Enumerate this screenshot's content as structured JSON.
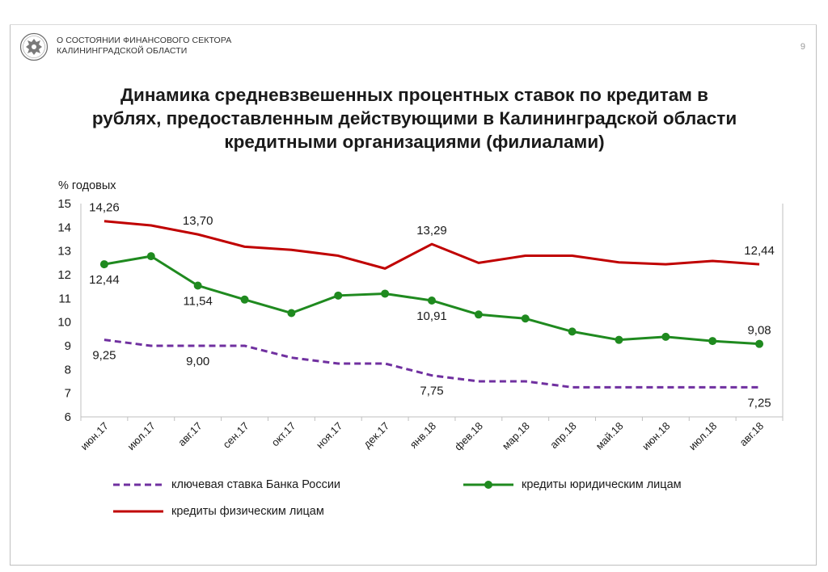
{
  "header": {
    "org_line1": "О СОСТОЯНИИ ФИНАНСОВОГО СЕКТОРА",
    "org_line2": "КАЛИНИНГРАДСКОЙ ОБЛАСТИ",
    "page_number": "9"
  },
  "title_lines": [
    "Динамика средневзвешенных процентных ставок по кредитам в",
    "рублях, предоставленным действующими в Калининградской области",
    "кредитными организациями (филиалами)"
  ],
  "chart_data": {
    "type": "line",
    "ylabel": "% годовых",
    "ylim": [
      6,
      15
    ],
    "yticks": [
      6,
      7,
      8,
      9,
      10,
      11,
      12,
      13,
      14,
      15
    ],
    "grid": false,
    "legend_position": "bottom",
    "categories": [
      "июн.17",
      "июл.17",
      "авг.17",
      "сен.17",
      "окт.17",
      "ноя.17",
      "дек.17",
      "янв.18",
      "фев.18",
      "мар.18",
      "апр.18",
      "май.18",
      "июн.18",
      "июл.18",
      "авг.18"
    ],
    "series": [
      {
        "name": "ключевая ставка Банка России",
        "color": "#7030a0",
        "style": "dashed",
        "values": [
          9.25,
          9.0,
          9.0,
          9.0,
          8.5,
          8.25,
          8.25,
          7.75,
          7.5,
          7.5,
          7.25,
          7.25,
          7.25,
          7.25,
          7.25
        ],
        "labels": [
          {
            "index": 0,
            "text": "9,25",
            "pos": "below"
          },
          {
            "index": 2,
            "text": "9,00",
            "pos": "below"
          },
          {
            "index": 7,
            "text": "7,75",
            "pos": "below"
          },
          {
            "index": 14,
            "text": "7,25",
            "pos": "below"
          }
        ]
      },
      {
        "name": "кредиты юридическим лицам",
        "color": "#1f8a1f",
        "style": "markers",
        "values": [
          12.44,
          12.78,
          11.54,
          10.95,
          10.38,
          11.12,
          11.2,
          10.91,
          10.32,
          10.15,
          9.6,
          9.25,
          9.38,
          9.2,
          9.08
        ],
        "labels": [
          {
            "index": 0,
            "text": "12,44",
            "pos": "below"
          },
          {
            "index": 2,
            "text": "11,54",
            "pos": "below"
          },
          {
            "index": 7,
            "text": "10,91",
            "pos": "below"
          },
          {
            "index": 14,
            "text": "9,08",
            "pos": "above"
          }
        ]
      },
      {
        "name": "кредиты физическим лицам",
        "color": "#c00000",
        "style": "solid",
        "values": [
          14.26,
          14.08,
          13.7,
          13.18,
          13.05,
          12.8,
          12.26,
          13.29,
          12.5,
          12.8,
          12.8,
          12.52,
          12.44,
          12.58,
          12.44
        ],
        "labels": [
          {
            "index": 0,
            "text": "14,26",
            "pos": "above"
          },
          {
            "index": 2,
            "text": "13,70",
            "pos": "above"
          },
          {
            "index": 7,
            "text": "13,29",
            "pos": "above"
          },
          {
            "index": 14,
            "text": "12,44",
            "pos": "above"
          }
        ]
      }
    ]
  }
}
